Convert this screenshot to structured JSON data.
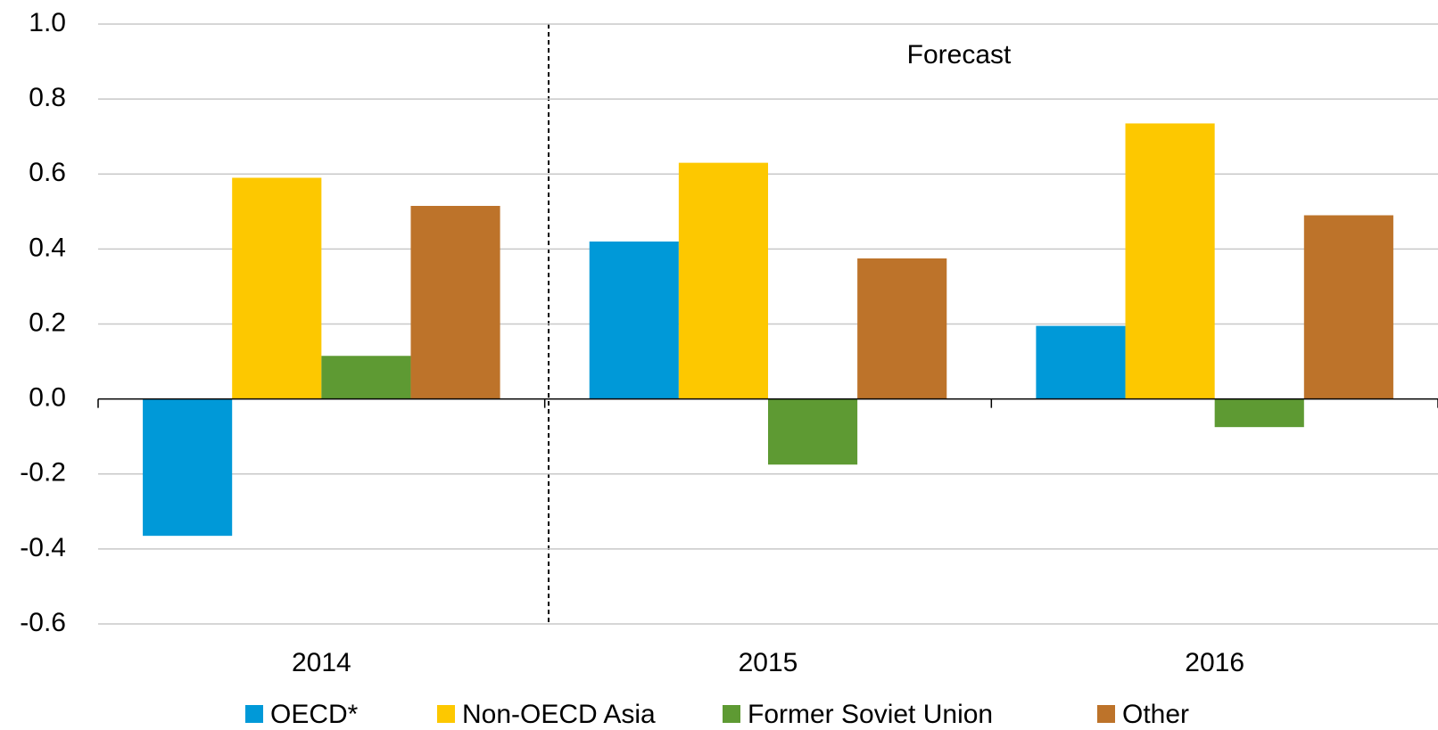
{
  "chart_data": {
    "type": "bar",
    "categories": [
      "2014",
      "2015",
      "2016"
    ],
    "series": [
      {
        "name": "OECD*",
        "color": "#0099d8",
        "values": [
          -0.365,
          0.42,
          0.195
        ]
      },
      {
        "name": "Non-OECD Asia",
        "color": "#fdc800",
        "values": [
          0.59,
          0.63,
          0.735
        ]
      },
      {
        "name": "Former Soviet Union",
        "color": "#5e9a33",
        "values": [
          0.115,
          -0.175,
          -0.075
        ]
      },
      {
        "name": "Other",
        "color": "#bd732a",
        "values": [
          0.515,
          0.375,
          0.49
        ]
      }
    ],
    "annotation": "Forecast",
    "ylim": [
      -0.6,
      1.0
    ],
    "yticks": [
      -0.6,
      -0.4,
      -0.2,
      {
        "value": 0,
        "label": "0.0"
      },
      0.2,
      0.4,
      0.6,
      0.8,
      {
        "value": 1,
        "label": "1.0"
      }
    ],
    "grid": true
  }
}
